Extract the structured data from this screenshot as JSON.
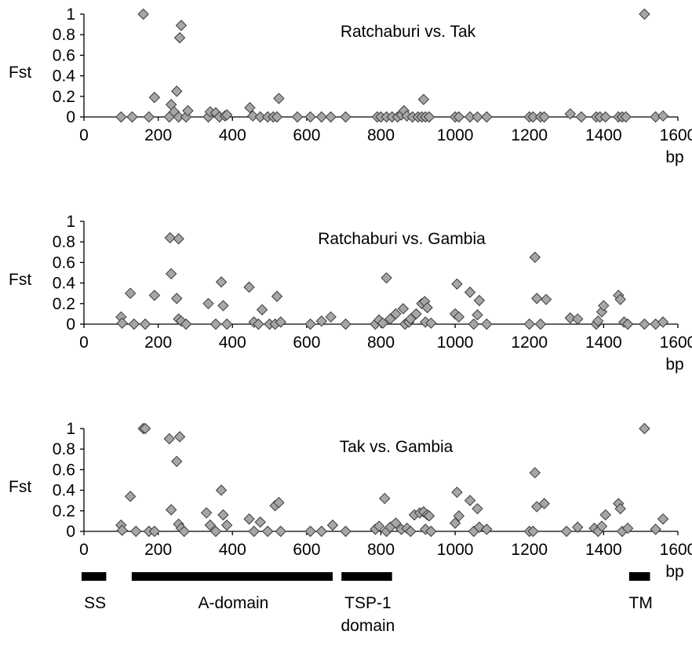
{
  "chart_data": [
    {
      "type": "scatter",
      "title": "Ratchaburi vs. Tak",
      "xlabel": "bp",
      "ylabel": "Fst",
      "xlim": [
        0,
        1600
      ],
      "ylim": [
        0,
        1
      ],
      "xticks": [
        "0",
        "200",
        "400",
        "600",
        "800",
        "1000",
        "1200",
        "1400",
        "1600"
      ],
      "yticks": [
        "0",
        "0.2",
        "0.4",
        "0.6",
        "0.8",
        "1"
      ],
      "points": [
        [
          100,
          0.0
        ],
        [
          130,
          0.0
        ],
        [
          160,
          1.0
        ],
        [
          175,
          0.0
        ],
        [
          190,
          0.19
        ],
        [
          230,
          0.0
        ],
        [
          235,
          0.12
        ],
        [
          243,
          0.05
        ],
        [
          250,
          0.25
        ],
        [
          255,
          0.0
        ],
        [
          258,
          0.77
        ],
        [
          262,
          0.89
        ],
        [
          275,
          0.0
        ],
        [
          280,
          0.06
        ],
        [
          335,
          0.0
        ],
        [
          340,
          0.05
        ],
        [
          355,
          0.04
        ],
        [
          365,
          0.0
        ],
        [
          380,
          0.01
        ],
        [
          385,
          0.02
        ],
        [
          447,
          0.09
        ],
        [
          455,
          0.01
        ],
        [
          475,
          0.0
        ],
        [
          495,
          0.0
        ],
        [
          510,
          0.0
        ],
        [
          520,
          0.0
        ],
        [
          525,
          0.18
        ],
        [
          575,
          0.0
        ],
        [
          610,
          0.0
        ],
        [
          640,
          0.0
        ],
        [
          665,
          0.0
        ],
        [
          705,
          0.0
        ],
        [
          790,
          0.0
        ],
        [
          800,
          0.0
        ],
        [
          815,
          0.0
        ],
        [
          830,
          0.0
        ],
        [
          845,
          0.0
        ],
        [
          855,
          0.02
        ],
        [
          862,
          0.06
        ],
        [
          870,
          0.01
        ],
        [
          885,
          0.0
        ],
        [
          900,
          0.0
        ],
        [
          910,
          0.0
        ],
        [
          915,
          0.17
        ],
        [
          920,
          0.0
        ],
        [
          930,
          0.0
        ],
        [
          1000,
          0.0
        ],
        [
          1010,
          0.0
        ],
        [
          1040,
          0.0
        ],
        [
          1060,
          0.0
        ],
        [
          1085,
          0.0
        ],
        [
          1200,
          0.0
        ],
        [
          1210,
          0.0
        ],
        [
          1230,
          0.0
        ],
        [
          1240,
          0.0
        ],
        [
          1310,
          0.03
        ],
        [
          1340,
          0.0
        ],
        [
          1380,
          0.0
        ],
        [
          1390,
          0.0
        ],
        [
          1405,
          0.0
        ],
        [
          1440,
          0.0
        ],
        [
          1450,
          0.0
        ],
        [
          1460,
          0.0
        ],
        [
          1510,
          1.0
        ],
        [
          1540,
          0.0
        ],
        [
          1560,
          0.01
        ]
      ]
    },
    {
      "type": "scatter",
      "title": "Ratchaburi vs. Gambia",
      "xlabel": "bp",
      "ylabel": "Fst",
      "xlim": [
        0,
        1600
      ],
      "ylim": [
        0,
        1
      ],
      "xticks": [
        "0",
        "200",
        "400",
        "600",
        "800",
        "1000",
        "1200",
        "1400",
        "1600"
      ],
      "yticks": [
        "0",
        "0.2",
        "0.4",
        "0.6",
        "0.8",
        "1"
      ],
      "points": [
        [
          100,
          0.07
        ],
        [
          103,
          0.01
        ],
        [
          125,
          0.3
        ],
        [
          135,
          0.0
        ],
        [
          165,
          0.0
        ],
        [
          190,
          0.28
        ],
        [
          232,
          0.84
        ],
        [
          235,
          0.49
        ],
        [
          255,
          0.83
        ],
        [
          250,
          0.25
        ],
        [
          255,
          0.05
        ],
        [
          262,
          0.03
        ],
        [
          275,
          0.0
        ],
        [
          335,
          0.2
        ],
        [
          355,
          0.0
        ],
        [
          370,
          0.41
        ],
        [
          375,
          0.18
        ],
        [
          385,
          0.0
        ],
        [
          445,
          0.36
        ],
        [
          458,
          0.02
        ],
        [
          470,
          0.0
        ],
        [
          480,
          0.14
        ],
        [
          500,
          0.0
        ],
        [
          515,
          0.0
        ],
        [
          520,
          0.27
        ],
        [
          530,
          0.02
        ],
        [
          610,
          0.0
        ],
        [
          640,
          0.03
        ],
        [
          665,
          0.07
        ],
        [
          705,
          0.0
        ],
        [
          785,
          0.0
        ],
        [
          795,
          0.04
        ],
        [
          805,
          0.01
        ],
        [
          815,
          0.45
        ],
        [
          825,
          0.05
        ],
        [
          840,
          0.1
        ],
        [
          860,
          0.15
        ],
        [
          865,
          0.0
        ],
        [
          875,
          0.02
        ],
        [
          880,
          0.05
        ],
        [
          895,
          0.1
        ],
        [
          910,
          0.2
        ],
        [
          918,
          0.22
        ],
        [
          925,
          0.16
        ],
        [
          920,
          0.02
        ],
        [
          935,
          0.01
        ],
        [
          1000,
          0.1
        ],
        [
          1005,
          0.39
        ],
        [
          1010,
          0.07
        ],
        [
          1040,
          0.31
        ],
        [
          1050,
          0.0
        ],
        [
          1060,
          0.09
        ],
        [
          1065,
          0.23
        ],
        [
          1085,
          0.0
        ],
        [
          1200,
          0.0
        ],
        [
          1215,
          0.65
        ],
        [
          1220,
          0.25
        ],
        [
          1230,
          0.0
        ],
        [
          1245,
          0.24
        ],
        [
          1310,
          0.06
        ],
        [
          1330,
          0.05
        ],
        [
          1380,
          0.0
        ],
        [
          1385,
          0.03
        ],
        [
          1395,
          0.12
        ],
        [
          1400,
          0.18
        ],
        [
          1440,
          0.28
        ],
        [
          1445,
          0.24
        ],
        [
          1455,
          0.02
        ],
        [
          1465,
          0.0
        ],
        [
          1510,
          0.0
        ],
        [
          1540,
          0.0
        ],
        [
          1560,
          0.02
        ]
      ]
    },
    {
      "type": "scatter",
      "title": "Tak vs. Gambia",
      "xlabel": "bp",
      "ylabel": "Fst",
      "xlim": [
        0,
        1600
      ],
      "ylim": [
        0,
        1
      ],
      "xticks": [
        "0",
        "200",
        "400",
        "600",
        "800",
        "1000",
        "1200",
        "1400",
        "1600"
      ],
      "yticks": [
        "0",
        "0.2",
        "0.4",
        "0.6",
        "0.8",
        "1"
      ],
      "points": [
        [
          100,
          0.06
        ],
        [
          103,
          0.01
        ],
        [
          125,
          0.34
        ],
        [
          140,
          0.0
        ],
        [
          160,
          1.0
        ],
        [
          165,
          1.0
        ],
        [
          175,
          0.0
        ],
        [
          190,
          0.0
        ],
        [
          230,
          0.9
        ],
        [
          235,
          0.21
        ],
        [
          250,
          0.68
        ],
        [
          255,
          0.07
        ],
        [
          258,
          0.92
        ],
        [
          262,
          0.03
        ],
        [
          270,
          0.0
        ],
        [
          330,
          0.18
        ],
        [
          340,
          0.06
        ],
        [
          355,
          0.0
        ],
        [
          370,
          0.4
        ],
        [
          375,
          0.16
        ],
        [
          385,
          0.06
        ],
        [
          445,
          0.12
        ],
        [
          458,
          0.0
        ],
        [
          475,
          0.09
        ],
        [
          495,
          0.0
        ],
        [
          515,
          0.25
        ],
        [
          525,
          0.28
        ],
        [
          530,
          0.0
        ],
        [
          610,
          0.0
        ],
        [
          640,
          0.0
        ],
        [
          670,
          0.06
        ],
        [
          705,
          0.0
        ],
        [
          785,
          0.02
        ],
        [
          795,
          0.05
        ],
        [
          810,
          0.32
        ],
        [
          815,
          0.0
        ],
        [
          825,
          0.04
        ],
        [
          840,
          0.08
        ],
        [
          855,
          0.02
        ],
        [
          870,
          0.03
        ],
        [
          880,
          0.0
        ],
        [
          890,
          0.16
        ],
        [
          905,
          0.18
        ],
        [
          915,
          0.19
        ],
        [
          925,
          0.16
        ],
        [
          930,
          0.15
        ],
        [
          920,
          0.02
        ],
        [
          935,
          0.0
        ],
        [
          1000,
          0.08
        ],
        [
          1005,
          0.38
        ],
        [
          1010,
          0.15
        ],
        [
          1040,
          0.3
        ],
        [
          1050,
          0.0
        ],
        [
          1060,
          0.22
        ],
        [
          1065,
          0.04
        ],
        [
          1085,
          0.02
        ],
        [
          1200,
          0.0
        ],
        [
          1210,
          0.0
        ],
        [
          1215,
          0.57
        ],
        [
          1220,
          0.24
        ],
        [
          1240,
          0.27
        ],
        [
          1300,
          0.0
        ],
        [
          1330,
          0.04
        ],
        [
          1375,
          0.03
        ],
        [
          1385,
          0.0
        ],
        [
          1395,
          0.05
        ],
        [
          1405,
          0.16
        ],
        [
          1440,
          0.27
        ],
        [
          1445,
          0.22
        ],
        [
          1450,
          0.0
        ],
        [
          1465,
          0.03
        ],
        [
          1510,
          1.0
        ],
        [
          1540,
          0.02
        ],
        [
          1560,
          0.12
        ]
      ]
    }
  ],
  "domains": [
    {
      "label": "SS",
      "start": 0,
      "end": 60
    },
    {
      "label": "A-domain",
      "start": 135,
      "end": 670
    },
    {
      "label": "TSP-1\ndomain",
      "start": 700,
      "end": 830
    },
    {
      "label": "TM",
      "start": 1475,
      "end": 1525
    }
  ]
}
